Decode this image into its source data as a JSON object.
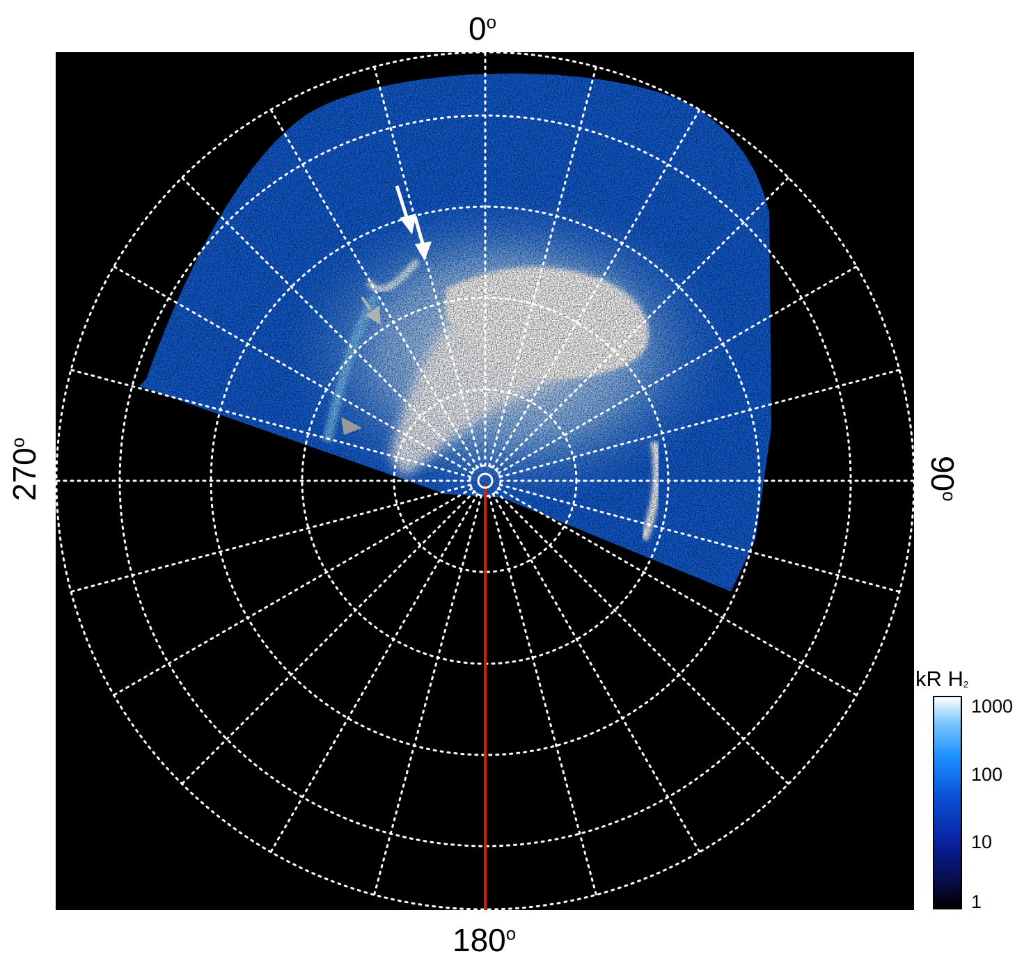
{
  "azimuth_labels": {
    "top": "0",
    "right": "90",
    "bottom": "180",
    "left": "270",
    "degree_symbol": "o"
  },
  "colorbar": {
    "title": "kR H",
    "title_sub": "2",
    "scale": "log",
    "ticks": [
      "1000",
      "100",
      "10",
      "1"
    ],
    "colors": [
      "#000000",
      "#0a1f9a",
      "#1e90ff",
      "#ffffff"
    ]
  },
  "colors": {
    "background": "#000000",
    "grid": "#ffffff",
    "meridian_line": "#cc2200",
    "arrow_white": "#ffffff",
    "arrow_grey": "#aaaaaa"
  },
  "image": {
    "description_free": true
  }
}
